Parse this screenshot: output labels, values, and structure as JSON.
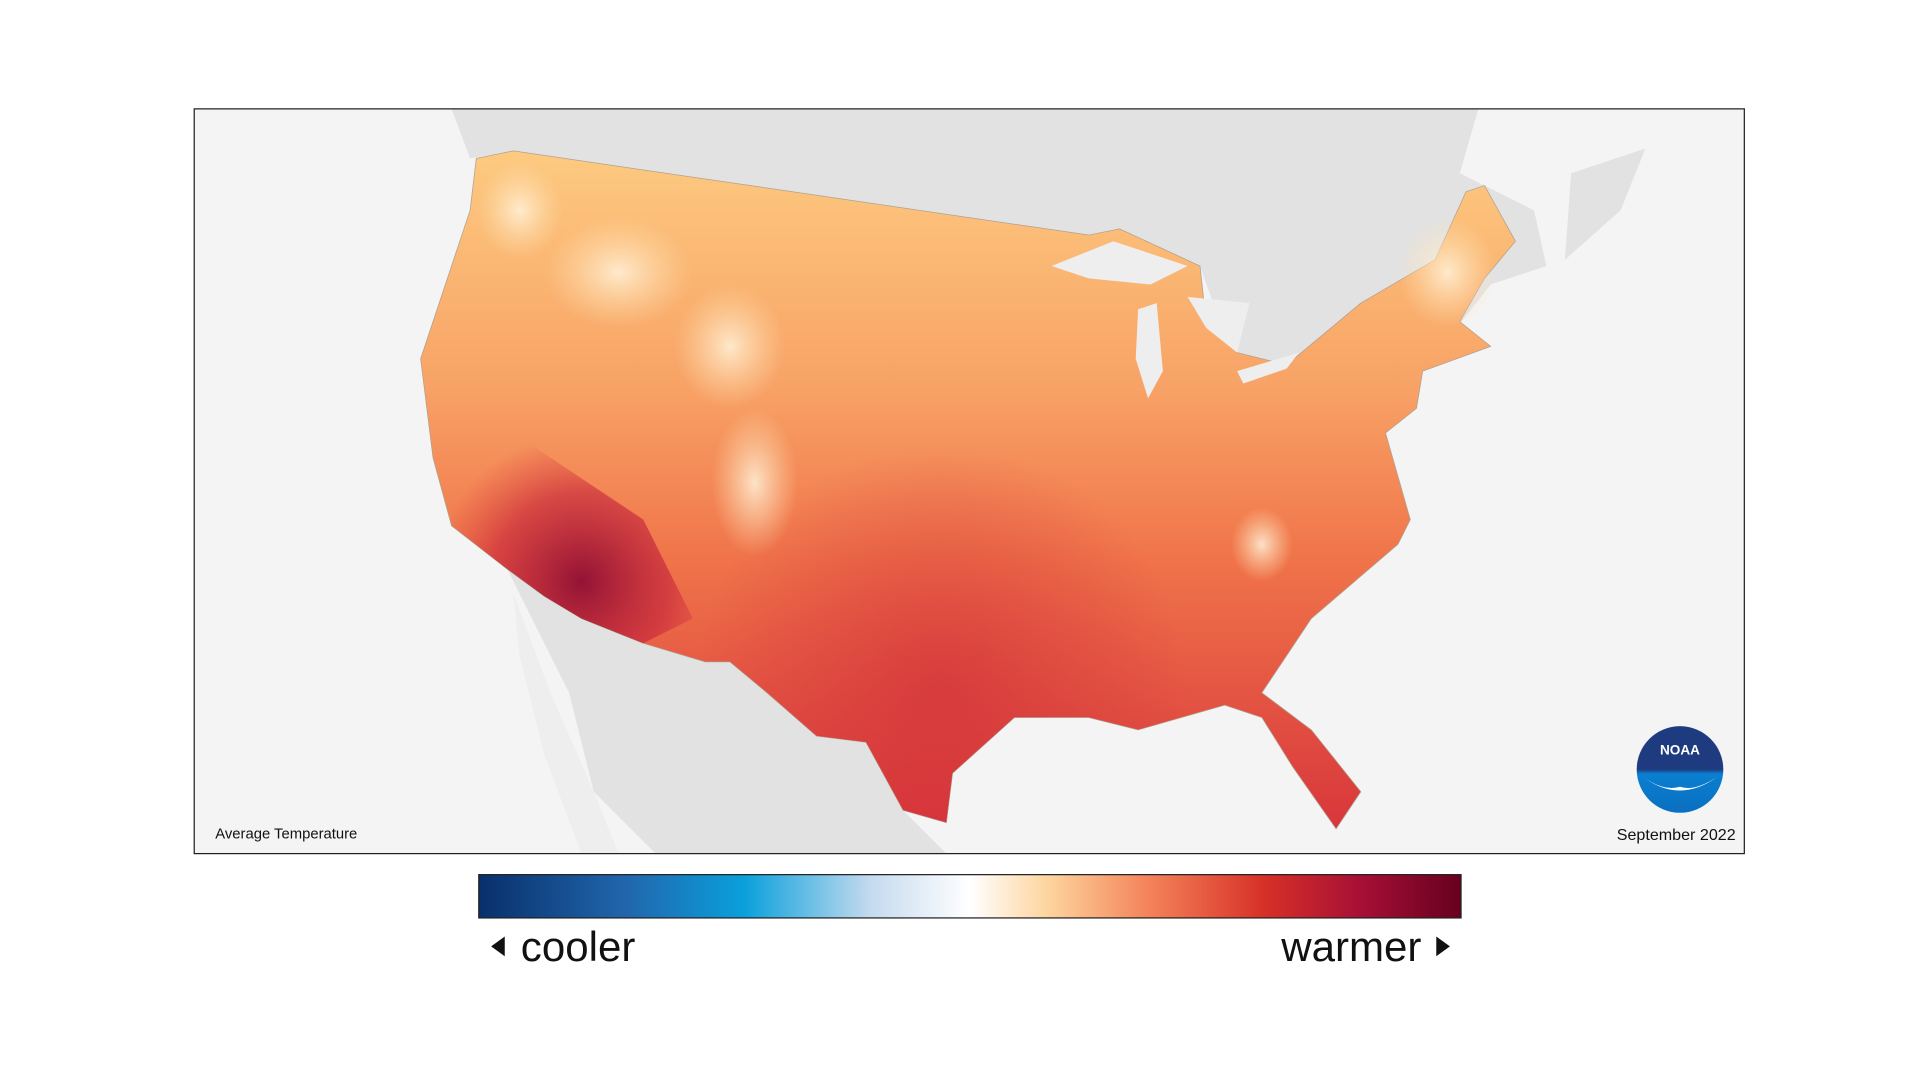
{
  "map": {
    "title": "Average Temperature",
    "date": "September 2022"
  },
  "legend": {
    "low_label": "cooler",
    "high_label": "warmer"
  },
  "logo": {
    "text": "NOAA"
  }
}
